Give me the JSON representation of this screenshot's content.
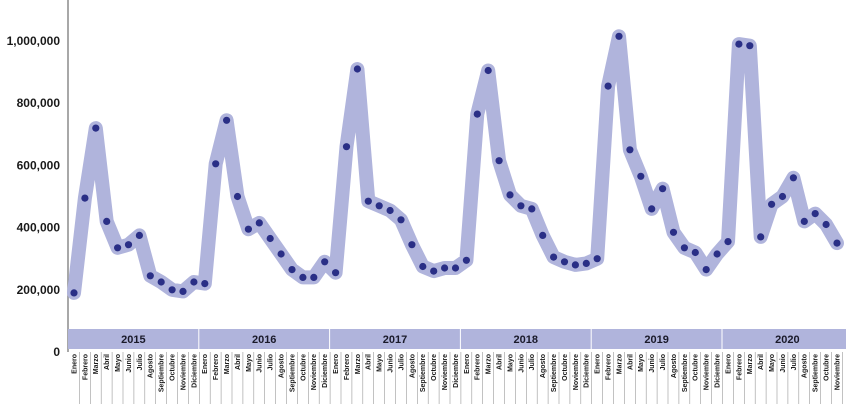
{
  "chart_data": {
    "type": "line",
    "ylim": [
      0,
      1100000
    ],
    "y_ticks": [
      {
        "value": 0,
        "label": "0"
      },
      {
        "value": 200000,
        "label": "200,000"
      },
      {
        "value": 400000,
        "label": "400,000"
      },
      {
        "value": 600000,
        "label": "600,000"
      },
      {
        "value": 800000,
        "label": "800,000"
      },
      {
        "value": 1000000,
        "label": "1,000,000"
      }
    ],
    "years": [
      "2015",
      "2016",
      "2017",
      "2018",
      "2019",
      "2020"
    ],
    "months": [
      "Enero",
      "Febrero",
      "Marzo",
      "Abril",
      "Mayo",
      "Junio",
      "Julio",
      "Agosto",
      "Septiembre",
      "Octubre",
      "Noviembre",
      "Diciembre"
    ],
    "series": [
      {
        "values": [
          190000,
          495000,
          720000,
          420000,
          335000,
          345000,
          375000,
          245000,
          225000,
          200000,
          195000,
          225000,
          220000,
          605000,
          745000,
          500000,
          395000,
          415000,
          365000,
          315000,
          265000,
          240000,
          240000,
          290000,
          255000,
          660000,
          910000,
          485000,
          470000,
          455000,
          425000,
          345000,
          275000,
          260000,
          270000,
          270000,
          295000,
          765000,
          905000,
          615000,
          505000,
          470000,
          460000,
          375000,
          305000,
          290000,
          280000,
          285000,
          300000,
          855000,
          1015000,
          650000,
          565000,
          460000,
          525000,
          385000,
          335000,
          320000,
          265000,
          315000,
          355000,
          990000,
          985000,
          370000,
          475000,
          500000,
          560000,
          420000,
          445000,
          410000,
          350000
        ]
      }
    ],
    "colors": {
      "band": "#b0b4dc",
      "marker": "#2a2f86",
      "axis": "#8c8c8c",
      "year_bar": "#b0b4dc"
    },
    "grid": false
  }
}
